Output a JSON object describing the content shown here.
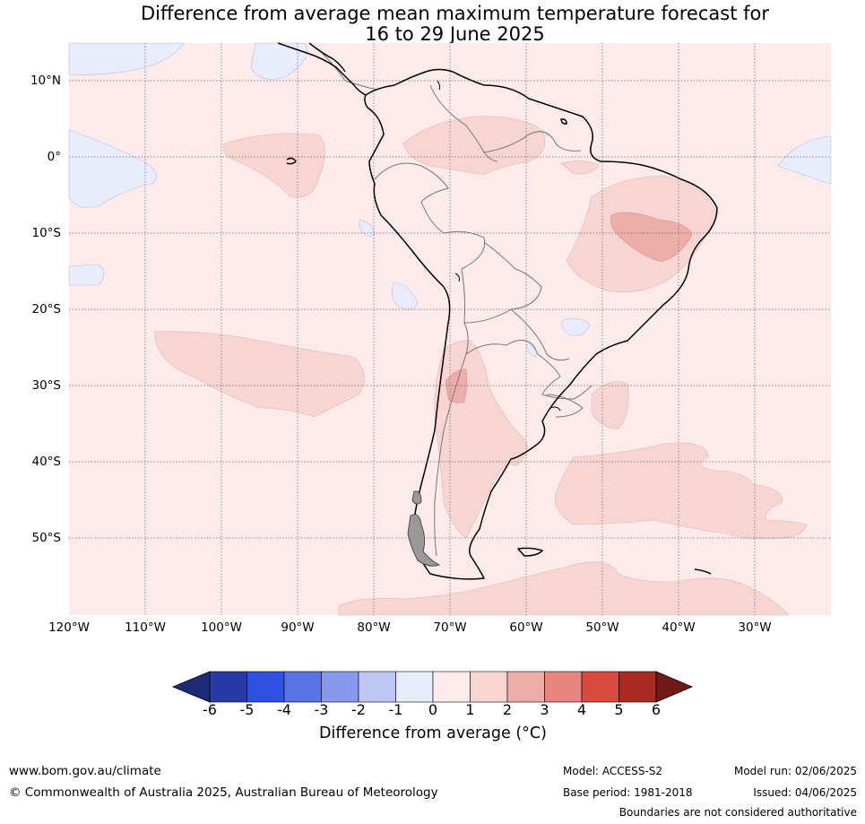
{
  "title": {
    "line1": "Difference from average mean maximum temperature forecast for",
    "line2": "16 to 29 June 2025"
  },
  "axes": {
    "lat_labels": [
      "10°N",
      "0°",
      "10°S",
      "20°S",
      "30°S",
      "40°S",
      "50°S"
    ],
    "lon_labels": [
      "120°W",
      "110°W",
      "100°W",
      "90°W",
      "80°W",
      "70°W",
      "60°W",
      "50°W",
      "40°W",
      "30°W"
    ]
  },
  "colorbar": {
    "label": "Difference from average (°C)",
    "ticks": [
      "-6",
      "-5",
      "-4",
      "-3",
      "-2",
      "-1",
      "0",
      "1",
      "2",
      "3",
      "4",
      "5",
      "6"
    ],
    "colors": [
      "#283aa8",
      "#3050e0",
      "#5a72e4",
      "#8899ec",
      "#c0c6f2",
      "#e9ecfb",
      "#fcebea",
      "#f6d5d3",
      "#edaeaa",
      "#e6857f",
      "#d94a3e",
      "#a82a20"
    ],
    "under_color": "#1e2a78",
    "over_color": "#70191a"
  },
  "map_colors": {
    "background": "#fcebea",
    "warm1": "#f6d5d3",
    "warm2": "#edaeaa",
    "cool1": "#e9ecfb"
  },
  "footer": {
    "website": "www.bom.gov.au/climate",
    "copyright": "© Commonwealth of Australia 2025, Australian Bureau of Meteorology",
    "model": "Model: ACCESS-S2",
    "base_period": "Base period: 1981-2018",
    "model_run": "Model run: 02/06/2025",
    "issued": "Issued: 04/06/2025",
    "disclaimer": "Boundaries are not considered authoritative"
  }
}
